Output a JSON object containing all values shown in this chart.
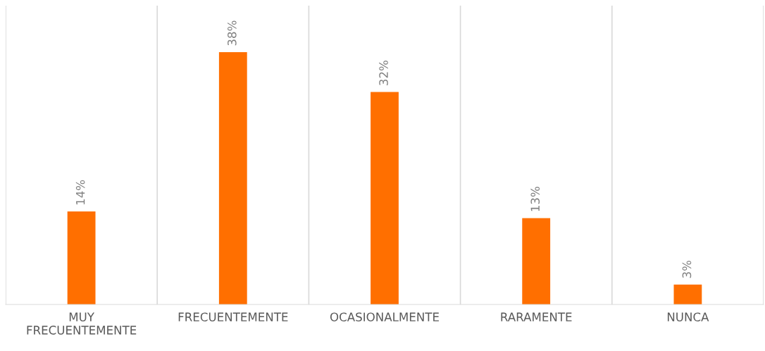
{
  "chart_data": {
    "type": "bar",
    "categories": [
      "MUY\nFRECUENTEMENTE",
      "FRECUENTEMENTE",
      "OCASIONALMENTE",
      "RARAMENTE",
      "NUNCA"
    ],
    "values": [
      14,
      38,
      32,
      13,
      3
    ],
    "value_labels": [
      "14%",
      "38%",
      "32%",
      "13%",
      "3%"
    ],
    "color": "#ff6f00",
    "ylim": [
      0,
      45
    ],
    "grid": "x",
    "legend": false
  }
}
